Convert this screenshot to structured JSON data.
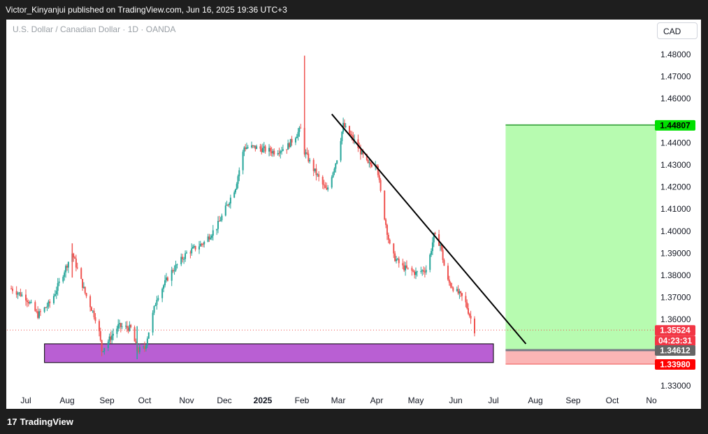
{
  "header": {
    "publisher_line": "Victor_Kinyanjui published on TradingView.com, Jun 16, 2025 19:36 UTC+3"
  },
  "symbol_line": "U.S. Dollar / Canadian Dollar · 1D · OANDA",
  "currency_button": "CAD",
  "footer": {
    "brand": "TradingView",
    "logo_text": "17"
  },
  "colors": {
    "up": "#26a69a",
    "down": "#ef5350",
    "target_zone": "#b7fbb0",
    "stop_zone": "#fbb5b5",
    "support_zone": "#b95fd3"
  },
  "chart_data": {
    "type": "candlestick",
    "title": "U.S. Dollar / Canadian Dollar · 1D · OANDA",
    "ylim": [
      1.325,
      1.496
    ],
    "y_ticks": [
      "1.48000",
      "1.47000",
      "1.46000",
      "1.44000",
      "1.43000",
      "1.42000",
      "1.41000",
      "1.40000",
      "1.39000",
      "1.38000",
      "1.37000",
      "1.36000",
      "1.33000"
    ],
    "x_ticks": [
      "Jul",
      "Aug",
      "Sep",
      "Oct",
      "Nov",
      "Dec",
      "2025",
      "Feb",
      "Mar",
      "Apr",
      "May",
      "Jun",
      "Jul",
      "Aug",
      "Sep",
      "Oct",
      "No"
    ],
    "price_path": [
      {
        "date": "2024-06-20",
        "price": 1.374
      },
      {
        "date": "2024-07-01",
        "price": 1.37
      },
      {
        "date": "2024-07-10",
        "price": 1.362
      },
      {
        "date": "2024-07-20",
        "price": 1.368
      },
      {
        "date": "2024-08-01",
        "price": 1.385
      },
      {
        "date": "2024-08-05",
        "price": 1.39
      },
      {
        "date": "2024-08-15",
        "price": 1.372
      },
      {
        "date": "2024-08-25",
        "price": 1.358
      },
      {
        "date": "2024-08-28",
        "price": 1.346
      },
      {
        "date": "2024-09-10",
        "price": 1.357
      },
      {
        "date": "2024-09-20",
        "price": 1.356
      },
      {
        "date": "2024-09-25",
        "price": 1.346
      },
      {
        "date": "2024-10-01",
        "price": 1.347
      },
      {
        "date": "2024-10-10",
        "price": 1.37
      },
      {
        "date": "2024-10-20",
        "price": 1.381
      },
      {
        "date": "2024-11-01",
        "price": 1.39
      },
      {
        "date": "2024-11-15",
        "price": 1.395
      },
      {
        "date": "2024-11-25",
        "price": 1.402
      },
      {
        "date": "2024-12-01",
        "price": 1.409
      },
      {
        "date": "2024-12-10",
        "price": 1.42
      },
      {
        "date": "2024-12-17",
        "price": 1.438
      },
      {
        "date": "2024-12-25",
        "price": 1.438
      },
      {
        "date": "2025-01-10",
        "price": 1.436
      },
      {
        "date": "2025-01-20",
        "price": 1.438
      },
      {
        "date": "2025-02-01",
        "price": 1.447
      },
      {
        "date": "2025-02-03",
        "price": 1.436
      },
      {
        "date": "2025-02-10",
        "price": 1.428
      },
      {
        "date": "2025-02-20",
        "price": 1.418
      },
      {
        "date": "2025-02-28",
        "price": 1.433
      },
      {
        "date": "2025-03-05",
        "price": 1.448
      },
      {
        "date": "2025-03-15",
        "price": 1.44
      },
      {
        "date": "2025-03-25",
        "price": 1.43
      },
      {
        "date": "2025-04-01",
        "price": 1.431
      },
      {
        "date": "2025-04-05",
        "price": 1.413
      },
      {
        "date": "2025-04-12",
        "price": 1.39
      },
      {
        "date": "2025-04-20",
        "price": 1.384
      },
      {
        "date": "2025-05-01",
        "price": 1.381
      },
      {
        "date": "2025-05-10",
        "price": 1.383
      },
      {
        "date": "2025-05-15",
        "price": 1.398
      },
      {
        "date": "2025-05-20",
        "price": 1.394
      },
      {
        "date": "2025-05-25",
        "price": 1.378
      },
      {
        "date": "2025-06-01",
        "price": 1.373
      },
      {
        "date": "2025-06-08",
        "price": 1.369
      },
      {
        "date": "2025-06-16",
        "price": 1.35524
      }
    ],
    "annotations": {
      "trendline": {
        "start": {
          "date": "2025-02-24",
          "price": 1.453
        },
        "end": {
          "date": "2025-07-25",
          "price": 1.349
        }
      },
      "support_zone": {
        "from_date": "2024-07-15",
        "to_date": "2025-07-01",
        "top": 1.349,
        "bottom": 1.3405
      },
      "target_zone": {
        "from_date": "2025-07-10",
        "to_date": "2025-11-05",
        "top": 1.44807,
        "bottom": 1.34612
      },
      "stop_zone": {
        "from_date": "2025-07-10",
        "to_date": "2025-11-05",
        "top": 1.34612,
        "bottom": 1.3398
      }
    },
    "price_labels": [
      {
        "text": "1.44807",
        "price": 1.44807,
        "bg": "#00e000",
        "fg": "#000000"
      },
      {
        "text": "1.35524",
        "price": 1.35524,
        "bg": "#f23645",
        "fg": "#ffffff"
      },
      {
        "text": "04:23:31",
        "price": 1.35524,
        "bg": "#f23645",
        "fg": "#ffffff"
      },
      {
        "text": "1.34612",
        "price": 1.34612,
        "bg": "#666666",
        "fg": "#ffffff"
      },
      {
        "text": "1.33980",
        "price": 1.3398,
        "bg": "#ff0000",
        "fg": "#ffffff"
      }
    ]
  }
}
